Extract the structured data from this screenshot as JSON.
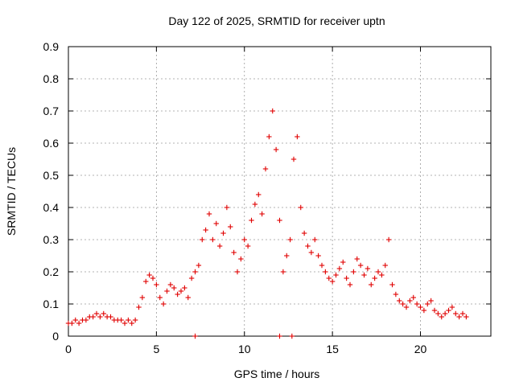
{
  "chart_data": {
    "type": "scatter",
    "title": "Day 122 of 2025, SRMTID for receiver uptn",
    "xlabel": "GPS time / hours",
    "ylabel": "SRMTID / TECUs",
    "xlim": [
      0,
      24
    ],
    "ylim": [
      0,
      0.9
    ],
    "xticks": [
      0,
      5,
      10,
      15,
      20
    ],
    "xtick_labels": [
      "0",
      "5",
      "10",
      "15",
      "20"
    ],
    "yticks": [
      0,
      0.1,
      0.2,
      0.3,
      0.4,
      0.5,
      0.6,
      0.7,
      0.8,
      0.9
    ],
    "ytick_labels": [
      "0",
      "0.1",
      "0.2",
      "0.3",
      "0.4",
      "0.5",
      "0.6",
      "0.7",
      "0.8",
      "0.9"
    ],
    "grid": true,
    "marker": "+",
    "color": "#e00000",
    "series": [
      {
        "name": "uptn",
        "x": [
          0.0,
          0.2,
          0.4,
          0.6,
          0.8,
          1.0,
          1.2,
          1.4,
          1.6,
          1.8,
          2.0,
          2.2,
          2.4,
          2.6,
          2.8,
          3.0,
          3.2,
          3.4,
          3.6,
          3.8,
          4.0,
          4.2,
          4.4,
          4.6,
          4.8,
          5.0,
          5.2,
          5.4,
          5.6,
          5.8,
          6.0,
          6.2,
          6.4,
          6.6,
          6.8,
          7.0,
          7.2,
          7.4,
          7.6,
          7.8,
          8.0,
          8.2,
          8.4,
          8.6,
          8.8,
          9.0,
          9.2,
          9.4,
          9.6,
          9.8,
          10.0,
          10.2,
          10.4,
          10.6,
          10.8,
          11.0,
          11.2,
          11.4,
          11.6,
          11.8,
          12.0,
          12.2,
          12.4,
          12.6,
          12.8,
          13.0,
          13.2,
          13.4,
          13.6,
          13.8,
          14.0,
          14.2,
          14.4,
          14.6,
          14.8,
          15.0,
          15.2,
          15.4,
          15.6,
          15.8,
          16.0,
          16.2,
          16.4,
          16.6,
          16.8,
          17.0,
          17.2,
          17.4,
          17.6,
          17.8,
          18.0,
          18.2,
          18.4,
          18.6,
          18.8,
          19.0,
          19.2,
          19.4,
          19.6,
          19.8,
          20.0,
          20.2,
          20.4,
          20.6,
          20.8,
          21.0,
          21.2,
          21.4,
          21.6,
          21.8,
          22.0,
          22.2,
          22.4,
          22.6
        ],
        "y": [
          0.04,
          0.04,
          0.05,
          0.04,
          0.05,
          0.05,
          0.06,
          0.06,
          0.07,
          0.06,
          0.07,
          0.06,
          0.06,
          0.05,
          0.05,
          0.05,
          0.04,
          0.05,
          0.04,
          0.05,
          0.09,
          0.12,
          0.17,
          0.19,
          0.18,
          0.16,
          0.12,
          0.1,
          0.14,
          0.16,
          0.15,
          0.13,
          0.14,
          0.15,
          0.12,
          0.18,
          0.2,
          0.22,
          0.3,
          0.33,
          0.38,
          0.3,
          0.35,
          0.28,
          0.32,
          0.4,
          0.34,
          0.26,
          0.2,
          0.24,
          0.3,
          0.28,
          0.36,
          0.41,
          0.44,
          0.38,
          0.52,
          0.62,
          0.7,
          0.58,
          0.36,
          0.2,
          0.25,
          0.3,
          0.55,
          0.62,
          0.4,
          0.32,
          0.28,
          0.26,
          0.3,
          0.25,
          0.22,
          0.2,
          0.18,
          0.17,
          0.19,
          0.21,
          0.23,
          0.18,
          0.16,
          0.2,
          0.24,
          0.22,
          0.19,
          0.21,
          0.16,
          0.18,
          0.2,
          0.19,
          0.22,
          0.3,
          0.16,
          0.13,
          0.11,
          0.1,
          0.09,
          0.11,
          0.12,
          0.1,
          0.09,
          0.08,
          0.1,
          0.11,
          0.08,
          0.07,
          0.06,
          0.07,
          0.08,
          0.09,
          0.07,
          0.06,
          0.07,
          0.06
        ]
      }
    ],
    "flagged_near_zero_x": [
      7.2,
      12.0,
      12.7
    ]
  }
}
